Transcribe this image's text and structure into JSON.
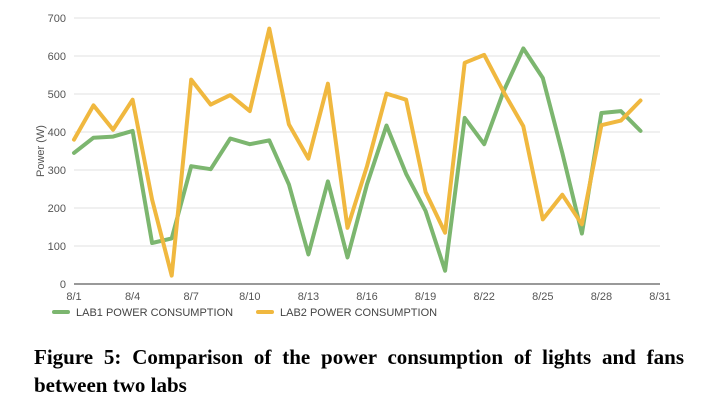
{
  "chart_data": {
    "type": "line",
    "title": "",
    "xlabel": "",
    "ylabel": "Power (W)",
    "ylim": [
      0,
      700
    ],
    "yticks": [
      0,
      100,
      200,
      300,
      400,
      500,
      600,
      700
    ],
    "xlim": [
      1,
      31
    ],
    "xticks": [
      1,
      4,
      7,
      10,
      13,
      16,
      19,
      22,
      25,
      28,
      31
    ],
    "xtick_labels": [
      "8/1",
      "8/4",
      "8/7",
      "8/10",
      "8/13",
      "8/16",
      "8/19",
      "8/22",
      "8/25",
      "8/28",
      "8/31"
    ],
    "grid": true,
    "legend_position": "bottom",
    "x": [
      "8/1",
      "8/2",
      "8/3",
      "8/4",
      "8/5",
      "8/6",
      "8/7",
      "8/8",
      "8/9",
      "8/10",
      "8/11",
      "8/12",
      "8/13",
      "8/14",
      "8/15",
      "8/16",
      "8/17",
      "8/18",
      "8/19",
      "8/20",
      "8/21",
      "8/22",
      "8/23",
      "8/24",
      "8/25",
      "8/26",
      "8/27",
      "8/28",
      "8/29",
      "8/30"
    ],
    "series": [
      {
        "name": "LAB1 POWER CONSUMPTION",
        "color": "#7cb66f",
        "values": [
          345,
          385,
          388,
          403,
          108,
          120,
          310,
          302,
          383,
          368,
          378,
          262,
          78,
          270,
          70,
          262,
          417,
          290,
          192,
          35,
          437,
          368,
          508,
          620,
          542,
          345,
          133,
          450,
          455,
          403
        ]
      },
      {
        "name": "LAB2 POWER CONSUMPTION",
        "color": "#f0b83f",
        "values": [
          380,
          470,
          406,
          485,
          222,
          22,
          538,
          472,
          497,
          455,
          672,
          420,
          330,
          527,
          148,
          310,
          501,
          485,
          242,
          135,
          582,
          603,
          505,
          415,
          170,
          235,
          157,
          418,
          430,
          483
        ]
      }
    ]
  },
  "caption": "Figure 5: Comparison of the power consumption of lights and fans between two labs"
}
